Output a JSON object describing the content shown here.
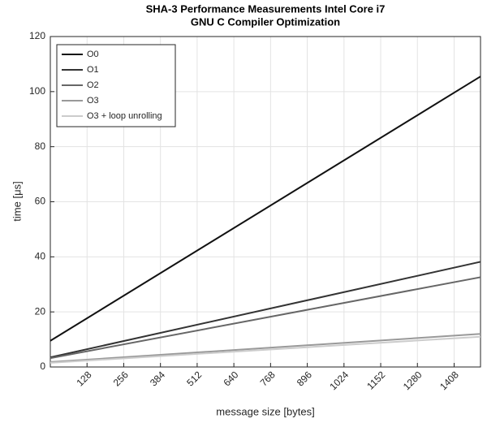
{
  "chart_data": {
    "type": "line",
    "title": "SHA-3 Performance Measurements Intel Core i7",
    "subtitle": "GNU C Compiler Optimization",
    "x_label": "message size [bytes]",
    "y_label": "time [μs]",
    "x": [
      0,
      1500
    ],
    "series": [
      {
        "name": "O0",
        "color": "#111111",
        "values": [
          9.5,
          105.5
        ]
      },
      {
        "name": "O1",
        "color": "#333333",
        "values": [
          3.5,
          38.2
        ]
      },
      {
        "name": "O2",
        "color": "#666666",
        "values": [
          3.2,
          32.6
        ]
      },
      {
        "name": "O3",
        "color": "#999999",
        "values": [
          1.8,
          12
        ]
      },
      {
        "name": "O3 + loop unrolling",
        "color": "#cccccc",
        "values": [
          1.5,
          11
        ]
      }
    ],
    "xlim": [
      0,
      1500
    ],
    "xticks": [
      128,
      256,
      384,
      512,
      640,
      768,
      896,
      1024,
      1152,
      1280,
      1408
    ],
    "ylim": [
      0,
      120
    ],
    "yticks": [
      0,
      20,
      40,
      60,
      80,
      100,
      120
    ],
    "grid": true,
    "legend": "upper-left"
  }
}
